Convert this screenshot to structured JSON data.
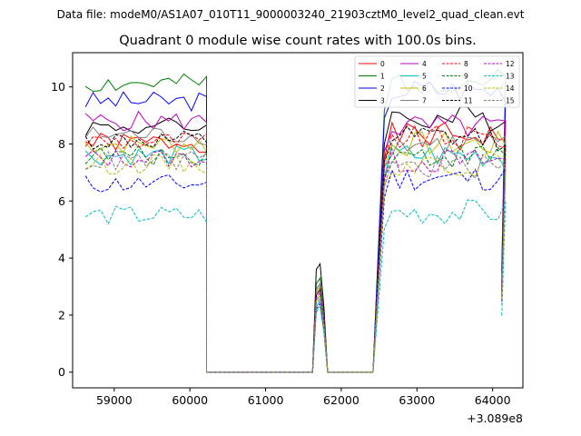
{
  "chart_data": {
    "type": "line",
    "suptitle": "Data file: modeM0/AS1A07_010T11_9000003240_21903cztM0_level2_quad_clean.evt",
    "title": "Quadrant 0 module wise count rates with 100.0s bins.",
    "xlabel": "",
    "ylabel": "",
    "x_offset_label": "+3.089e8",
    "xlim": [
      58450,
      64400
    ],
    "ylim": [
      -0.55,
      11.2
    ],
    "xticks": [
      59000,
      60000,
      61000,
      62000,
      63000,
      64000
    ],
    "xtick_labels": [
      "59000",
      "60000",
      "61000",
      "62000",
      "63000",
      "64000"
    ],
    "yticks": [
      0,
      2,
      4,
      6,
      8,
      10
    ],
    "ytick_labels": [
      "0",
      "2",
      "4",
      "6",
      "8",
      "10"
    ],
    "grid": false,
    "legend_position": "upper right",
    "legend_columns": 4,
    "segments": [
      {
        "start": 58620,
        "n": 17
      },
      {
        "start": 60220,
        "n": 15
      },
      {
        "start": 61720,
        "n": 2
      },
      {
        "start": 62420,
        "n": 18
      }
    ],
    "series": [
      {
        "name": "0",
        "color": "#ff0000",
        "dash": "solid",
        "base1": 8.05,
        "base2": 8.3,
        "spike": 3.0,
        "seed": 1
      },
      {
        "name": "1",
        "color": "#008000",
        "dash": "solid",
        "base1": 10.1,
        "base2": 10.2,
        "spike": 3.3,
        "seed": 2
      },
      {
        "name": "2",
        "color": "#0000ff",
        "dash": "solid",
        "base1": 9.5,
        "base2": 9.9,
        "spike": 3.1,
        "seed": 3
      },
      {
        "name": "3",
        "color": "#000000",
        "dash": "solid",
        "base1": 8.6,
        "base2": 8.9,
        "spike": 3.8,
        "seed": 4
      },
      {
        "name": "4",
        "color": "#bf00bf",
        "dash": "solid",
        "base1": 8.8,
        "base2": 8.6,
        "spike": 3.0,
        "seed": 5
      },
      {
        "name": "5",
        "color": "#00bfbf",
        "dash": "solid",
        "base1": 7.6,
        "base2": 7.6,
        "spike": 2.5,
        "seed": 6
      },
      {
        "name": "6",
        "color": "#bfbf00",
        "dash": "solid",
        "base1": 8.0,
        "base2": 8.0,
        "spike": 3.0,
        "seed": 7
      },
      {
        "name": "7",
        "color": "#808080",
        "dash": "solid",
        "base1": 8.3,
        "base2": 8.0,
        "spike": 3.1,
        "seed": 8
      },
      {
        "name": "8",
        "color": "#ff0000",
        "dash": "dashed",
        "base1": 8.1,
        "base2": 8.2,
        "spike": 2.9,
        "seed": 9
      },
      {
        "name": "9",
        "color": "#008000",
        "dash": "dashed",
        "base1": 7.6,
        "base2": 7.6,
        "spike": 2.7,
        "seed": 10
      },
      {
        "name": "10",
        "color": "#0000ff",
        "dash": "dashed",
        "base1": 6.6,
        "base2": 6.8,
        "spike": 2.4,
        "seed": 11
      },
      {
        "name": "11",
        "color": "#000000",
        "dash": "dashed",
        "base1": 8.1,
        "base2": 8.2,
        "spike": 2.9,
        "seed": 12
      },
      {
        "name": "12",
        "color": "#bf00bf",
        "dash": "dashed",
        "base1": 7.5,
        "base2": 7.4,
        "spike": 2.8,
        "seed": 13
      },
      {
        "name": "13",
        "color": "#00bfbf",
        "dash": "dashed",
        "base1": 5.5,
        "base2": 5.6,
        "spike": 2.3,
        "seed": 14
      },
      {
        "name": "14",
        "color": "#bfbf00",
        "dash": "dashed",
        "base1": 7.3,
        "base2": 7.3,
        "spike": 2.7,
        "seed": 15
      },
      {
        "name": "15",
        "color": "#808080",
        "dash": "dashed",
        "base1": 7.4,
        "base2": 7.2,
        "spike": 2.6,
        "seed": 16
      }
    ]
  }
}
